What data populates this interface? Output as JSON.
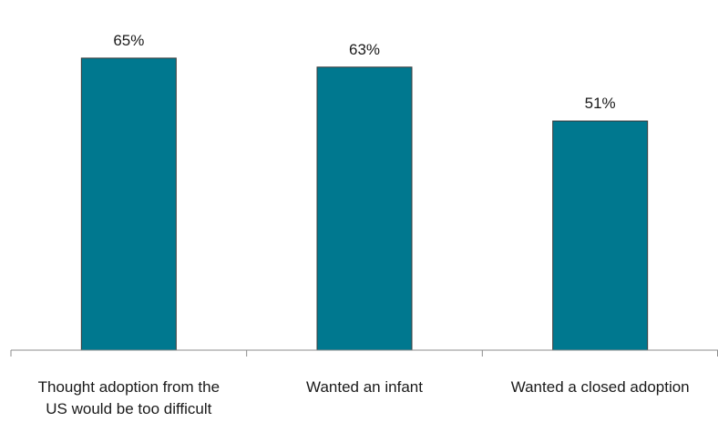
{
  "chart_data": {
    "type": "bar",
    "categories": [
      [
        "Thought adoption from the",
        "US would be too difficult"
      ],
      [
        "Wanted an infant"
      ],
      [
        "Wanted a closed adoption"
      ]
    ],
    "values": [
      65,
      63,
      51
    ],
    "value_labels": [
      "65%",
      "63%",
      "51%"
    ],
    "title": "",
    "xlabel": "",
    "ylabel": "",
    "ylim": [
      0,
      70
    ],
    "grid": false,
    "legend": "none",
    "colors": {
      "bar_fill": "#00788F",
      "bar_stroke": "#3A3A3A",
      "axis": "#8C8C8C",
      "text": "#1A1A1A"
    }
  }
}
